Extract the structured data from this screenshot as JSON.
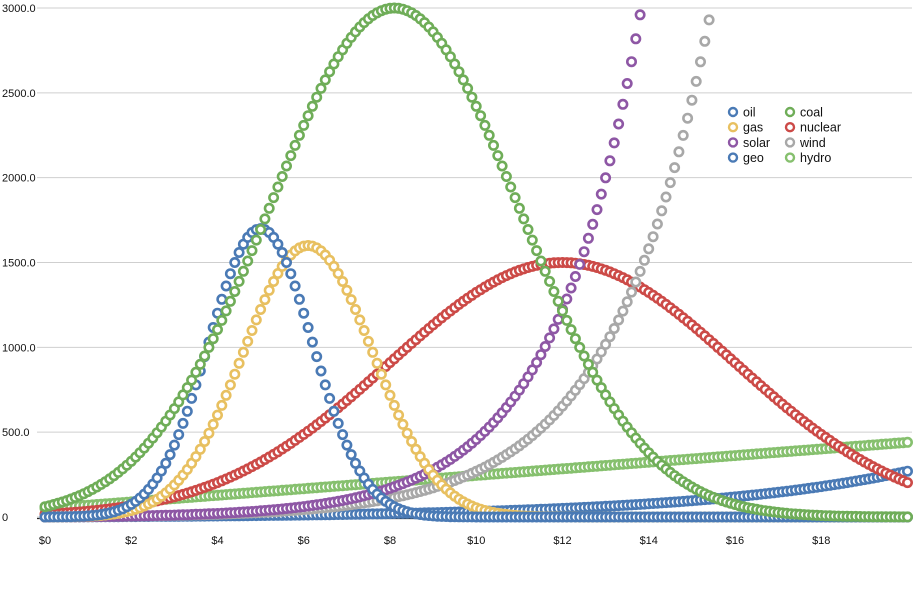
{
  "chart_data": {
    "type": "scatter",
    "xlim": [
      0,
      20
    ],
    "ylim": [
      0,
      3000
    ],
    "x_ticks": [
      "$0",
      "$2",
      "$4",
      "$6",
      "$8",
      "$10",
      "$12",
      "$14",
      "$16",
      "$18"
    ],
    "y_ticks": [
      "0",
      "500.0",
      "1000.0",
      "1500.0",
      "2000.0",
      "2500.0",
      "3000.0"
    ],
    "grid": "horizontal",
    "legend_position": "top-right",
    "marker": "hollow-circle",
    "series": [
      {
        "name": "oil",
        "color": "#4a7ab5",
        "kind": "gauss",
        "peak": 1700,
        "center": 5.0,
        "sigma": 1.2,
        "base": 0
      },
      {
        "name": "gas",
        "color": "#e8c060",
        "kind": "gauss",
        "peak": 1600,
        "center": 6.1,
        "sigma": 1.5,
        "base": 0
      },
      {
        "name": "solar",
        "color": "#8e57a5",
        "kind": "exp",
        "x0": 0,
        "x1": 13.8,
        "y0": 0,
        "y1": 2960,
        "k": 0.49
      },
      {
        "name": "geo",
        "color": "#4a7ab5",
        "kind": "exp",
        "x0": 0,
        "x1": 20,
        "y0": 0,
        "y1": 270,
        "k": 0.2
      },
      {
        "name": "coal",
        "color": "#6fad58",
        "kind": "gauss",
        "peak": 3000,
        "center": 8.1,
        "sigma": 2.9,
        "base": 0
      },
      {
        "name": "nuclear",
        "color": "#cc4a47",
        "kind": "gauss",
        "peak": 1500,
        "center": 12.0,
        "sigma": 4.0,
        "base": 0
      },
      {
        "name": "wind",
        "color": "#a8a8a8",
        "kind": "exp",
        "x0": 0,
        "x1": 15.4,
        "y0": 0,
        "y1": 2930,
        "k": 0.44
      },
      {
        "name": "hydro",
        "color": "#86c06e",
        "kind": "linear",
        "x0": 0,
        "x1": 20,
        "y0": 50,
        "y1": 440
      }
    ],
    "legend_order": [
      [
        "oil",
        "coal"
      ],
      [
        "gas",
        "nuclear"
      ],
      [
        "solar",
        "wind"
      ],
      [
        "geo",
        "hydro"
      ]
    ]
  }
}
